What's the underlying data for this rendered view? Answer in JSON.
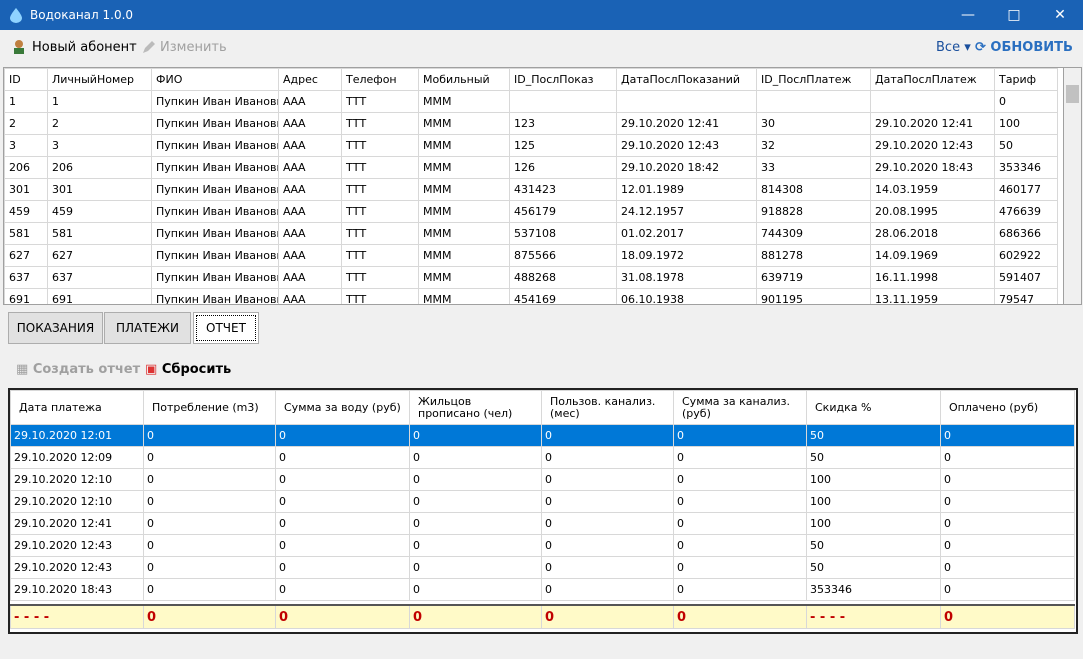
{
  "window": {
    "title": "Водоканал 1.0.0"
  },
  "toolbar": {
    "new": "Новый абонент",
    "edit": "Изменить",
    "filter": "Все",
    "refresh": "ОБНОВИТЬ"
  },
  "top_table": {
    "columns": [
      "ID",
      "ЛичныйНомер",
      "ФИО",
      "Адрес",
      "Телефон",
      "Мобильный",
      "ID_ПослПоказ",
      "ДатаПослПоказаний",
      "ID_ПослПлатеж",
      "ДатаПослПлатеж",
      "Тариф"
    ],
    "rows": [
      [
        "1",
        "1",
        "Пупкин Иван Иванович",
        "ААА",
        "ТТТ",
        "МММ",
        null,
        null,
        null,
        null,
        "0"
      ],
      [
        "2",
        "2",
        "Пупкин Иван Иванович",
        "ААА",
        "ТТТ",
        "МММ",
        "123",
        "29.10.2020 12:41",
        "30",
        "29.10.2020 12:41",
        "100"
      ],
      [
        "3",
        "3",
        "Пупкин Иван Иванович",
        "ААА",
        "ТТТ",
        "МММ",
        "125",
        "29.10.2020 12:43",
        "32",
        "29.10.2020 12:43",
        "50"
      ],
      [
        "206",
        "206",
        "Пупкин Иван Иванович",
        "ААА",
        "ТТТ",
        "МММ",
        "126",
        "29.10.2020 18:42",
        "33",
        "29.10.2020 18:43",
        "353346"
      ],
      [
        "301",
        "301",
        "Пупкин Иван Иванович",
        "ААА",
        "ТТТ",
        "МММ",
        "431423",
        "12.01.1989",
        "814308",
        "14.03.1959",
        "460177"
      ],
      [
        "459",
        "459",
        "Пупкин Иван Иванович",
        "ААА",
        "ТТТ",
        "МММ",
        "456179",
        "24.12.1957",
        "918828",
        "20.08.1995",
        "476639"
      ],
      [
        "581",
        "581",
        "Пупкин Иван Иванович",
        "ААА",
        "ТТТ",
        "МММ",
        "537108",
        "01.02.2017",
        "744309",
        "28.06.2018",
        "686366"
      ],
      [
        "627",
        "627",
        "Пупкин Иван Иванович",
        "ААА",
        "ТТТ",
        "МММ",
        "875566",
        "18.09.1972",
        "881278",
        "14.09.1969",
        "602922"
      ],
      [
        "637",
        "637",
        "Пупкин Иван Иванович",
        "ААА",
        "ТТТ",
        "МММ",
        "488268",
        "31.08.1978",
        "639719",
        "16.11.1998",
        "591407"
      ],
      [
        "691",
        "691",
        "Пупкин Иван Иванович",
        "ААА",
        "ТТТ",
        "МММ",
        "454169",
        "06.10.1938",
        "901195",
        "13.11.1959",
        "79547"
      ]
    ]
  },
  "tabs": [
    "ПОКАЗАНИЯ",
    "ПЛАТЕЖИ",
    "ОТЧЕТ"
  ],
  "report_toolbar": {
    "create": "Создать отчет",
    "reset": "Сбросить"
  },
  "report_table": {
    "columns": [
      "Дата платежа",
      "Потребление (m3)",
      "Сумма за воду (руб)",
      "Жильцов прописано (чел)",
      "Пользов. канализ. (мес)",
      "Сумма за канализ. (руб)",
      "Скидка %",
      "Оплачено (руб)"
    ],
    "rows": [
      [
        "29.10.2020 12:01",
        "0",
        "0",
        "0",
        "0",
        "0",
        "50",
        "0"
      ],
      [
        "29.10.2020 12:09",
        "0",
        "0",
        "0",
        "0",
        "0",
        "50",
        "0"
      ],
      [
        "29.10.2020 12:10",
        "0",
        "0",
        "0",
        "0",
        "0",
        "100",
        "0"
      ],
      [
        "29.10.2020 12:10",
        "0",
        "0",
        "0",
        "0",
        "0",
        "100",
        "0"
      ],
      [
        "29.10.2020 12:41",
        "0",
        "0",
        "0",
        "0",
        "0",
        "100",
        "0"
      ],
      [
        "29.10.2020 12:43",
        "0",
        "0",
        "0",
        "0",
        "0",
        "50",
        "0"
      ],
      [
        "29.10.2020 12:43",
        "0",
        "0",
        "0",
        "0",
        "0",
        "50",
        "0"
      ],
      [
        "29.10.2020 18:43",
        "0",
        "0",
        "0",
        "0",
        "0",
        "353346",
        "0"
      ]
    ],
    "totals": [
      "- - - -",
      "0",
      "0",
      "0",
      "0",
      "0",
      "- - - -",
      "0"
    ]
  }
}
